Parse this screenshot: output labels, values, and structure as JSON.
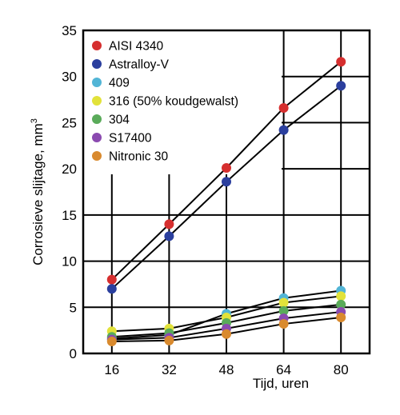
{
  "chart_data": {
    "type": "line",
    "x": [
      16,
      32,
      48,
      64,
      80
    ],
    "xlabel": "Tijd, uren",
    "ylabel": "Corrosieve slijtage, mm",
    "ylabel_superscript": "3",
    "xlim": [
      8,
      88
    ],
    "ylim": [
      0,
      35
    ],
    "yticks": [
      0,
      5,
      10,
      15,
      20,
      25,
      30,
      35
    ],
    "xticks": [
      16,
      32,
      48,
      64,
      80
    ],
    "grid": true,
    "legend_position": "top-left",
    "series": [
      {
        "name": "AISI 4340",
        "color": "#d62f2f",
        "values": [
          8.0,
          14.0,
          20.1,
          26.6,
          31.6
        ]
      },
      {
        "name": "Astralloy-V",
        "color": "#2b3f9e",
        "values": [
          7.0,
          12.7,
          18.6,
          24.2,
          29.0
        ]
      },
      {
        "name": "409",
        "color": "#52b5d6",
        "values": [
          1.6,
          2.0,
          4.3,
          6.0,
          6.8
        ]
      },
      {
        "name": "316 (50% koudgewalst)",
        "color": "#e2e23a",
        "values": [
          2.4,
          2.7,
          3.9,
          5.5,
          6.2
        ]
      },
      {
        "name": "304",
        "color": "#5aab5a",
        "values": [
          1.8,
          2.2,
          3.3,
          4.6,
          5.3
        ]
      },
      {
        "name": "S17400",
        "color": "#8b4ab0",
        "values": [
          1.5,
          1.7,
          2.7,
          3.8,
          4.5
        ]
      },
      {
        "name": "Nitronic 30",
        "color": "#d98a2e",
        "values": [
          1.3,
          1.4,
          2.1,
          3.2,
          3.9
        ]
      }
    ]
  }
}
